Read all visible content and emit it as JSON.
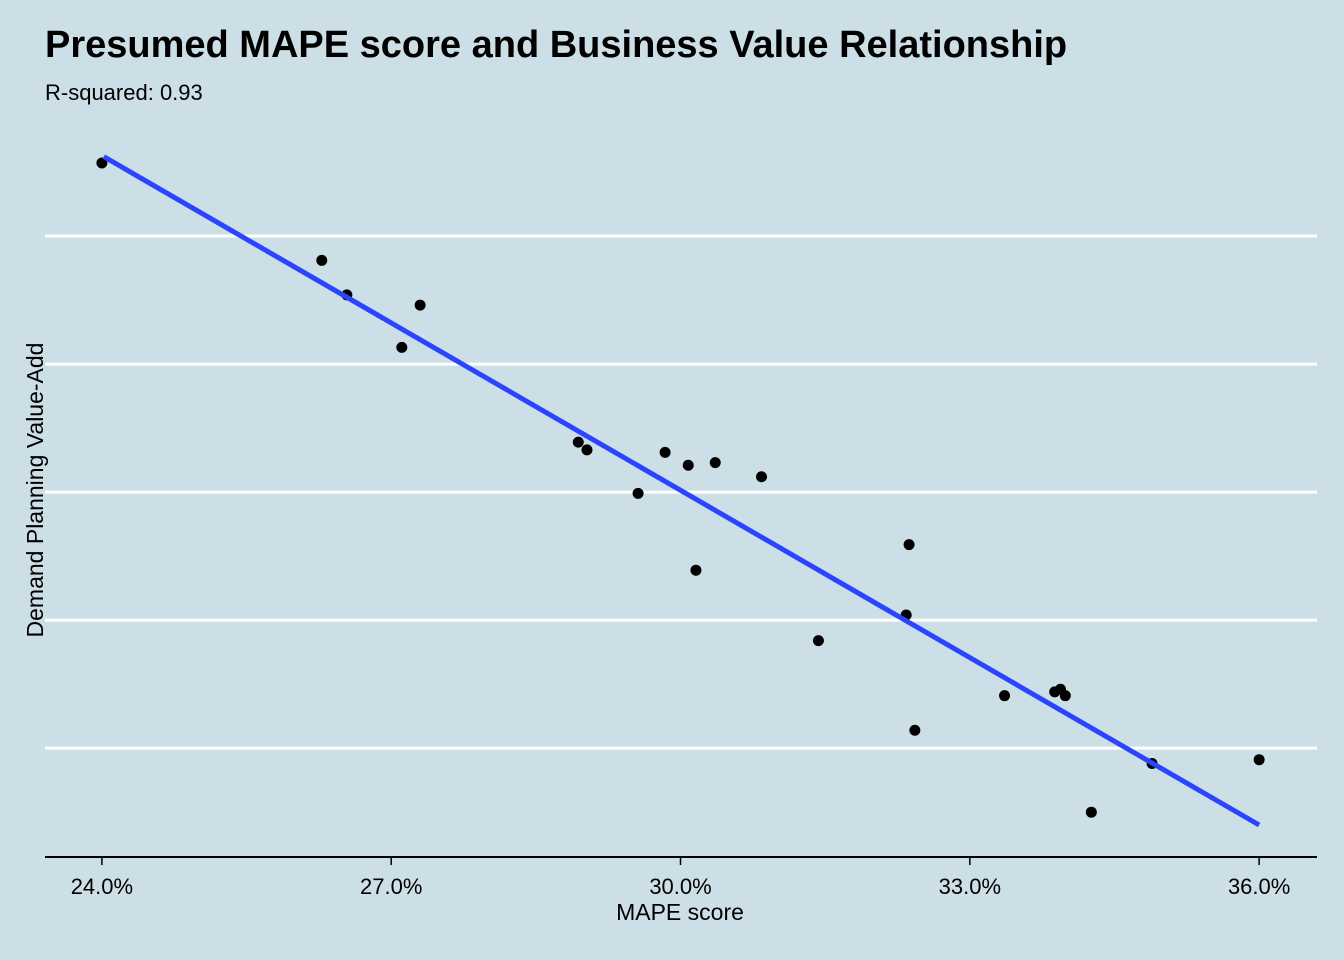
{
  "chart_data": {
    "type": "scatter",
    "title": "Presumed MAPE score and Business Value Relationship",
    "subtitle": "R-squared: 0.93",
    "x_label": "MAPE score",
    "y_label": "Demand Planning Value-Add",
    "x": [
      24.0,
      26.28,
      26.54,
      27.3,
      27.11,
      28.94,
      29.03,
      29.84,
      30.08,
      30.36,
      29.56,
      30.84,
      30.16,
      32.37,
      32.34,
      31.43,
      33.36,
      33.88,
      33.94,
      33.99,
      32.43,
      34.89,
      36.0,
      34.26
    ],
    "values": [
      5.57,
      4.81,
      4.54,
      4.46,
      4.13,
      3.39,
      3.33,
      3.31,
      3.21,
      3.23,
      2.99,
      3.12,
      2.39,
      2.59,
      2.04,
      1.84,
      1.41,
      1.44,
      1.46,
      1.41,
      1.14,
      0.88,
      0.91,
      0.5
    ],
    "color": "#000000",
    "trend_line": {
      "x": [
        24.02,
        36.0
      ],
      "y": [
        5.62,
        0.4
      ],
      "color": "#2b44ff"
    },
    "xlim": [
      23.41,
      36.6
    ],
    "ylim": [
      0.15,
      5.75
    ],
    "xticks": [
      {
        "value": 24,
        "label": "24.0%"
      },
      {
        "value": 27,
        "label": "27.0%"
      },
      {
        "value": 30,
        "label": "30.0%"
      },
      {
        "value": 33,
        "label": "33.0%"
      },
      {
        "value": 36,
        "label": "36.0%"
      }
    ],
    "yticks": [
      1,
      2,
      3,
      4,
      5
    ],
    "ytick_labels": false,
    "grid": true
  }
}
